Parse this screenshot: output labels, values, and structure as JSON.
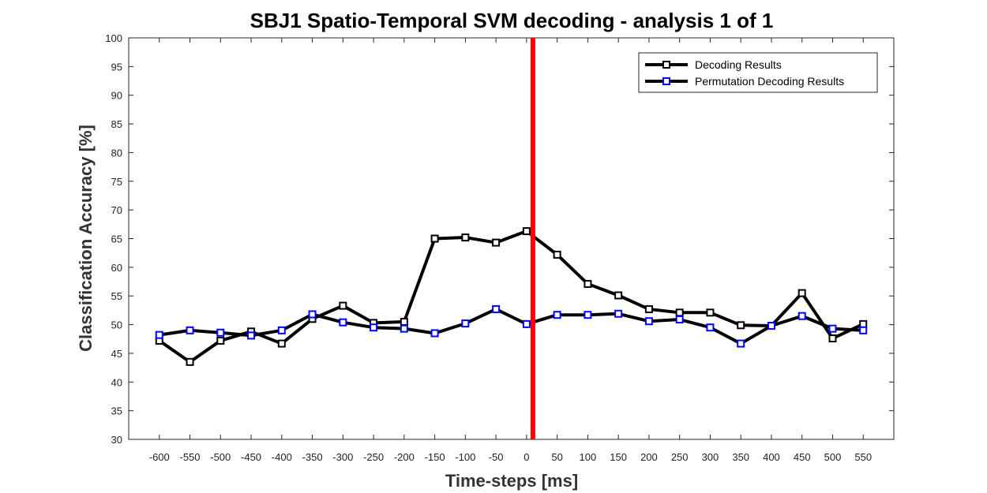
{
  "chart_data": {
    "type": "line",
    "title": "SBJ1 Spatio-Temporal SVM decoding - analysis 1 of 1",
    "xlabel": "Time-steps [ms]",
    "ylabel": "Classification Accuracy [%]",
    "x": [
      -600,
      -550,
      -500,
      -450,
      -400,
      -350,
      -300,
      -250,
      -200,
      -150,
      -100,
      -50,
      0,
      50,
      100,
      150,
      200,
      250,
      300,
      350,
      400,
      450,
      500,
      550
    ],
    "x_tick_labels": [
      "-600",
      "-550",
      "-500",
      "-450",
      "-400",
      "-350",
      "-300",
      "-250",
      "-200",
      "-150",
      "-100",
      "-50",
      "0",
      "50",
      "100",
      "150",
      "200",
      "250",
      "300",
      "350",
      "400",
      "450",
      "500",
      "550"
    ],
    "xlim": [
      -650,
      600
    ],
    "ylim": [
      30,
      100
    ],
    "y_ticks": [
      30,
      35,
      40,
      45,
      50,
      55,
      60,
      65,
      70,
      75,
      80,
      85,
      90,
      95,
      100
    ],
    "grid": false,
    "legend_position": "top-right",
    "vertical_marker": {
      "x": 0,
      "color": "#ff0000"
    },
    "series": [
      {
        "name": "Decoding Results",
        "line_color": "#000000",
        "marker_color": "#000000",
        "values": [
          47.2,
          43.5,
          47.2,
          48.8,
          46.7,
          51.0,
          53.3,
          50.3,
          50.5,
          65.0,
          65.2,
          64.3,
          66.3,
          62.2,
          57.1,
          55.1,
          52.7,
          52.1,
          52.1,
          49.9,
          49.8,
          55.5,
          47.6,
          50.1
        ]
      },
      {
        "name": "Permutation Decoding Results",
        "line_color": "#000000",
        "marker_color": "#0000ff",
        "values": [
          48.2,
          49.0,
          48.6,
          48.1,
          49.0,
          51.8,
          50.4,
          49.5,
          49.3,
          48.5,
          50.2,
          52.7,
          50.1,
          51.7,
          51.7,
          51.9,
          50.6,
          50.9,
          49.5,
          46.7,
          49.8,
          51.5,
          49.3,
          49.0
        ]
      }
    ]
  }
}
